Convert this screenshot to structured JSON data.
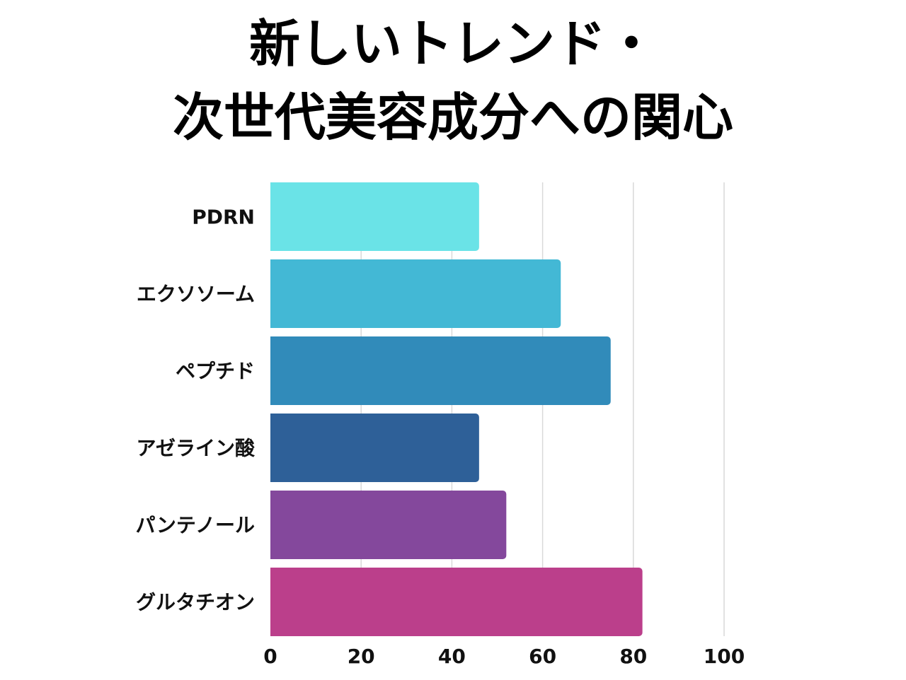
{
  "chart_data": {
    "type": "bar",
    "orientation": "horizontal",
    "title_lines": [
      "新しいトレンド・",
      "次世代美容成分への関心"
    ],
    "categories": [
      "PDRN",
      "エクソソーム",
      "ペプチド",
      "アゼライン酸",
      "パンテノール",
      "グルタチオン"
    ],
    "values": [
      46,
      64,
      75,
      46,
      52,
      82
    ],
    "colors": [
      "#6ae3e7",
      "#43b8d5",
      "#318bba",
      "#2e6098",
      "#84489c",
      "#bb3f8b"
    ],
    "xlim": [
      0,
      100
    ],
    "xticks": [
      "0",
      "20",
      "40",
      "60",
      "80",
      "100"
    ],
    "grid": true,
    "gridline_color": "#d9d9d9"
  }
}
